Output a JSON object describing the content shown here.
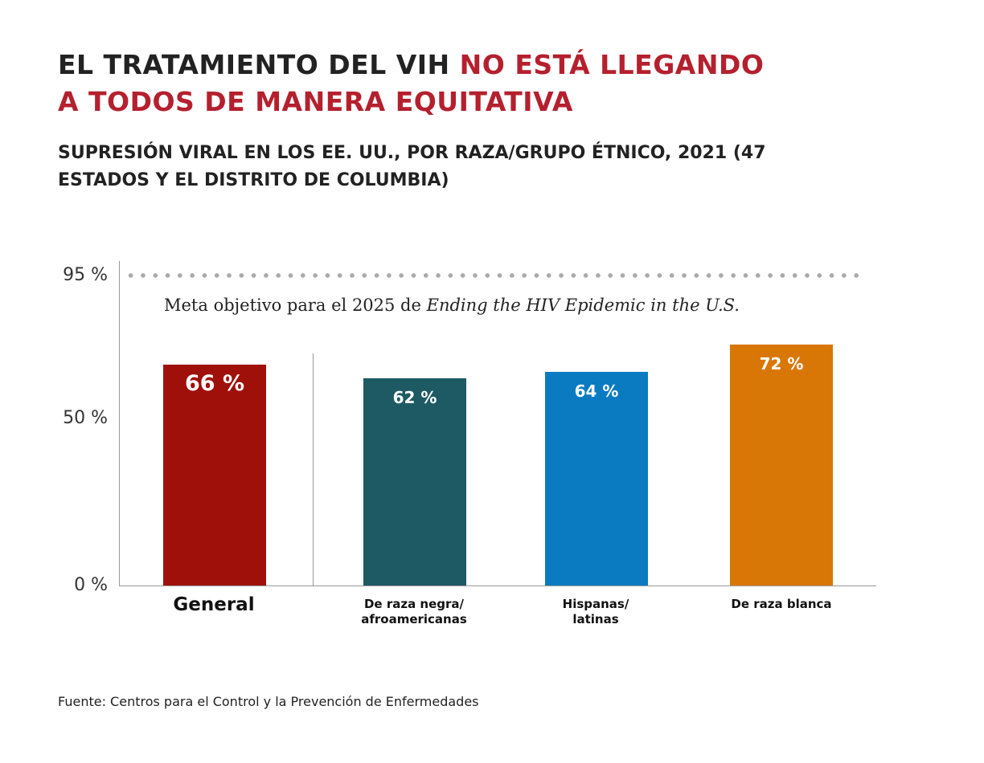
{
  "title": {
    "part1": "EL TRATAMIENTO DEL VIH ",
    "part2": "NO ESTÁ LLEGANDO A TODOS DE MANERA EQUITATIVA"
  },
  "subtitle": "SUPRESIÓN VIRAL EN LOS EE. UU., POR RAZA/GRUPO ÉTNICO, 2021 (47 ESTADOS Y EL DISTRITO DE COLUMBIA)",
  "chart_data": {
    "type": "bar",
    "categories": [
      "General",
      "De raza negra/ afroamericanas",
      "Hispanas/ latinas",
      "De raza blanca"
    ],
    "values": [
      66,
      62,
      64,
      72
    ],
    "value_labels": [
      "66 %",
      "62 %",
      "64 %",
      "72 %"
    ],
    "colors": [
      "#a0100a",
      "#1e5a63",
      "#0a7bc1",
      "#d97706"
    ],
    "y_ticks": [
      "0 %",
      "50 %",
      "95 %"
    ],
    "ylim": [
      0,
      95
    ],
    "goal": {
      "value": 95,
      "label_plain": "Meta objetivo para el 2025 de ",
      "label_italic": "Ending the HIV Epidemic in the U.S."
    }
  },
  "source": "Fuente: Centros para el Control y la Prevención de Enfermedades"
}
